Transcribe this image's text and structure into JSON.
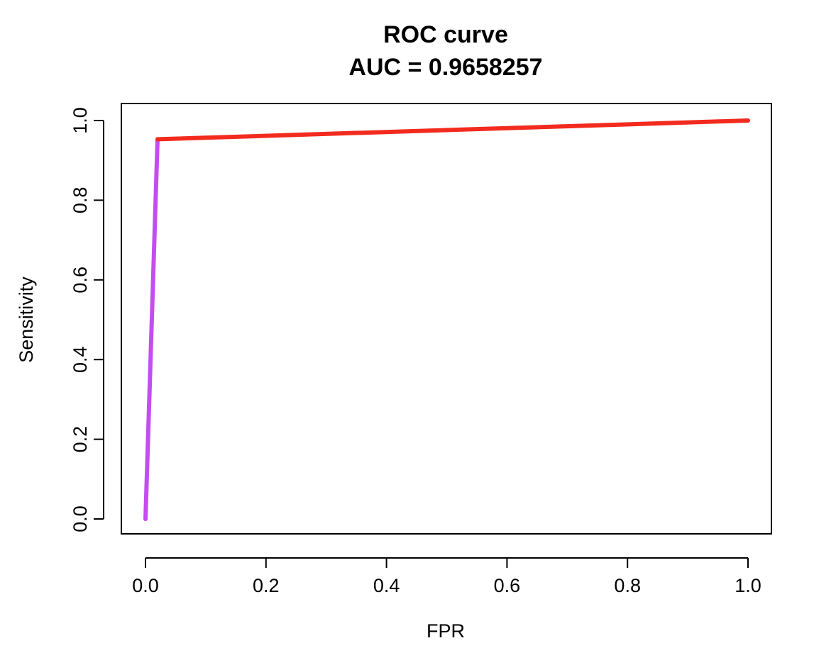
{
  "chart_data": {
    "type": "line",
    "title": "ROC curve",
    "subtitle": "AUC = 0.9658257",
    "xlabel": "FPR",
    "ylabel": "Sensitivity",
    "xlim": [
      0,
      1
    ],
    "ylim": [
      0,
      1
    ],
    "x_ticks": [
      "0.0",
      "0.2",
      "0.4",
      "0.6",
      "0.8",
      "1.0"
    ],
    "y_ticks": [
      "0.0",
      "0.2",
      "0.4",
      "0.6",
      "0.8",
      "1.0"
    ],
    "grid": false,
    "legend": "none",
    "series": [
      {
        "color": "#C44DF0",
        "points": [
          [
            0.0,
            0.0
          ],
          [
            0.02,
            0.953
          ]
        ]
      },
      {
        "color": "#F22B1E",
        "points": [
          [
            0.02,
            0.953
          ],
          [
            1.0,
            1.0
          ]
        ]
      }
    ]
  }
}
